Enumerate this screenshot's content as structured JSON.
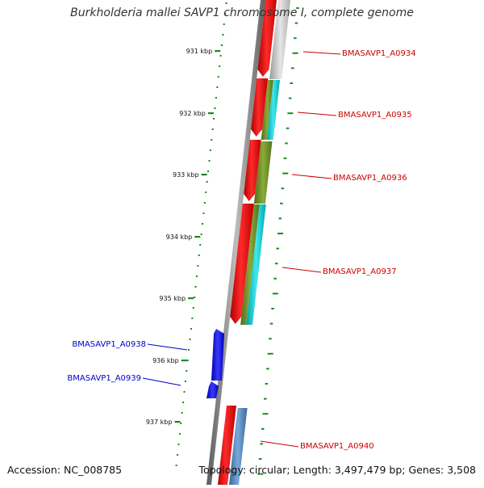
{
  "title": "Burkholderia mallei SAVP1 chromosome I, complete genome",
  "footer": {
    "accession_label": "Accession:",
    "accession": "NC_008785",
    "topology_label": "Topology:",
    "topology": "circular",
    "length_label": "Length:",
    "length": "3,497,479 bp",
    "genes_label": "Genes:",
    "genes": "3,508"
  },
  "colors": {
    "forward_label": "#cc0000",
    "reverse_label": "#0000cc",
    "tick_green": "#1a8a1a",
    "backbone": "#777777",
    "red_track": "#ee0000",
    "cyan_track": "#00c8d0",
    "olive_track": "#6b8e23",
    "gray_track": "#c8c8c8",
    "steel_track": "#4a7ab0"
  },
  "kbp_ticks": [
    {
      "label": "931 kbp"
    },
    {
      "label": "932 kbp"
    },
    {
      "label": "933 kbp"
    },
    {
      "label": "934 kbp"
    },
    {
      "label": "935 kbp"
    },
    {
      "label": "936 kbp"
    },
    {
      "label": "937 kbp"
    }
  ],
  "genes_list": [
    {
      "name": "BMASAVP1_A0934",
      "strand": "forward"
    },
    {
      "name": "BMASAVP1_A0935",
      "strand": "forward"
    },
    {
      "name": "BMASAVP1_A0936",
      "strand": "forward"
    },
    {
      "name": "BMASAVP1_A0937",
      "strand": "forward"
    },
    {
      "name": "BMASAVP1_A0938",
      "strand": "reverse"
    },
    {
      "name": "BMASAVP1_A0939",
      "strand": "reverse"
    },
    {
      "name": "BMASAVP1_A0940",
      "strand": "forward"
    }
  ]
}
